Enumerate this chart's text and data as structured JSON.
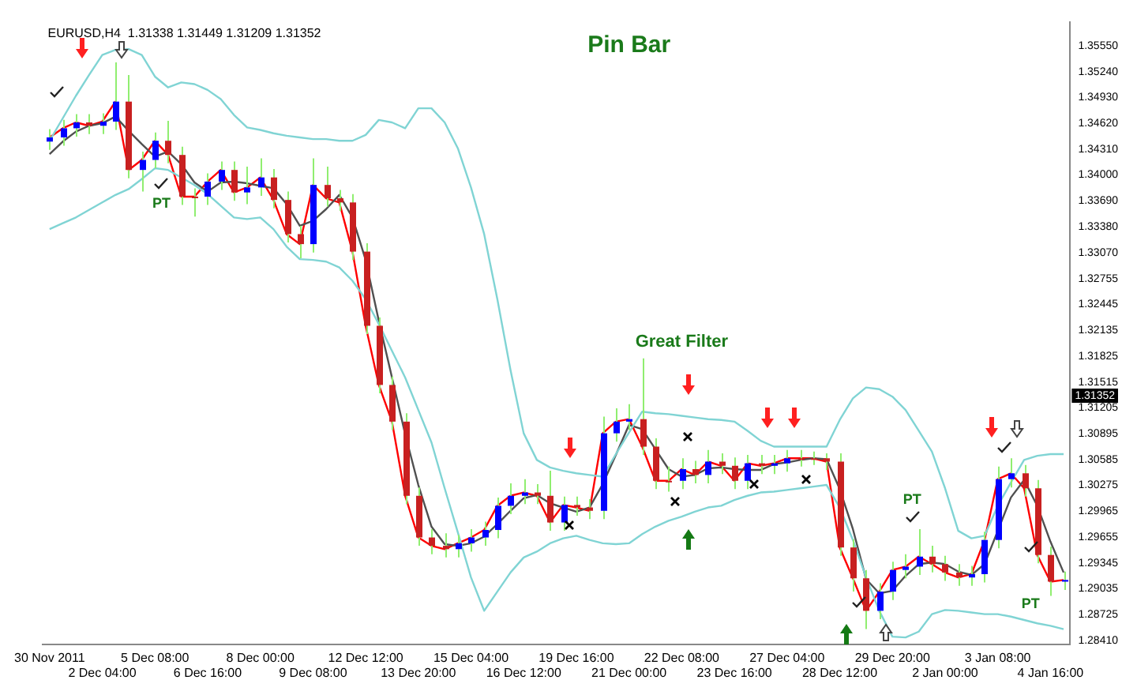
{
  "chart_data": {
    "type": "candlestick",
    "title": "EURUSD,H4  1.31338 1.31449 1.31209 1.31352",
    "categories": [
      "30 Nov 2011",
      null,
      null,
      null,
      "2 Dec 04:00",
      null,
      null,
      null,
      "5 Dec 08:00",
      null,
      null,
      null,
      "6 Dec 16:00",
      null,
      null,
      null,
      "8 Dec 00:00",
      null,
      null,
      null,
      "9 Dec 08:00",
      null,
      null,
      null,
      "12 Dec 12:00",
      null,
      null,
      null,
      "13 Dec 20:00",
      null,
      null,
      null,
      "15 Dec 04:00",
      null,
      null,
      null,
      "16 Dec 12:00",
      null,
      null,
      null,
      "19 Dec 16:00",
      null,
      null,
      null,
      "21 Dec 00:00",
      null,
      null,
      null,
      "22 Dec 08:00",
      null,
      null,
      null,
      "23 Dec 16:00",
      null,
      null,
      null,
      "27 Dec 04:00",
      null,
      null,
      null,
      "28 Dec 12:00",
      null,
      null,
      null,
      "29 Dec 20:00",
      null,
      null,
      null,
      "2 Jan 00:00",
      null,
      null,
      null,
      "3 Jan 08:00",
      null,
      null,
      null,
      "4 Jan 16:00",
      null
    ],
    "ohlc": [
      [
        1.344,
        1.3455,
        1.343,
        1.3445
      ],
      [
        1.3445,
        1.3466,
        1.3435,
        1.3456
      ],
      [
        1.3456,
        1.3473,
        1.3446,
        1.3463
      ],
      [
        1.3463,
        1.3473,
        1.3449,
        1.3459
      ],
      [
        1.3459,
        1.3474,
        1.3449,
        1.3464
      ],
      [
        1.3464,
        1.3535,
        1.3454,
        1.3488
      ],
      [
        1.3488,
        1.352,
        1.3396,
        1.3406
      ],
      [
        1.3406,
        1.3428,
        1.338,
        1.3418
      ],
      [
        1.3418,
        1.3451,
        1.3408,
        1.3441
      ],
      [
        1.3441,
        1.3465,
        1.3414,
        1.3424
      ],
      [
        1.3424,
        1.3434,
        1.3364,
        1.3374
      ],
      [
        1.3374,
        1.3384,
        1.335,
        1.3374
      ],
      [
        1.3374,
        1.3402,
        1.3364,
        1.3392
      ],
      [
        1.3392,
        1.3416,
        1.3382,
        1.3406
      ],
      [
        1.3406,
        1.3416,
        1.3369,
        1.3379
      ],
      [
        1.3379,
        1.341,
        1.3365,
        1.3385
      ],
      [
        1.3385,
        1.342,
        1.3375,
        1.3397
      ],
      [
        1.3397,
        1.3407,
        1.336,
        1.337
      ],
      [
        1.337,
        1.338,
        1.3319,
        1.3329
      ],
      [
        1.3329,
        1.3339,
        1.33,
        1.3317
      ],
      [
        1.3317,
        1.342,
        1.3307,
        1.3388
      ],
      [
        1.3388,
        1.341,
        1.3362,
        1.3372
      ],
      [
        1.3372,
        1.3382,
        1.3357,
        1.3367
      ],
      [
        1.3367,
        1.3377,
        1.3298,
        1.3308
      ],
      [
        1.3308,
        1.3318,
        1.3209,
        1.3219
      ],
      [
        1.3219,
        1.3229,
        1.3138,
        1.3148
      ],
      [
        1.3148,
        1.3158,
        1.3094,
        1.3104
      ],
      [
        1.3104,
        1.3114,
        1.3005,
        1.3015
      ],
      [
        1.3015,
        1.3025,
        1.2955,
        1.2965
      ],
      [
        1.2965,
        1.2975,
        1.2945,
        1.2955
      ],
      [
        1.2955,
        1.297,
        1.2941,
        1.2951
      ],
      [
        1.2951,
        1.2968,
        1.2941,
        1.2958
      ],
      [
        1.2958,
        1.2975,
        1.2948,
        1.2965
      ],
      [
        1.2965,
        1.2984,
        1.2955,
        1.2974
      ],
      [
        1.2974,
        1.3013,
        1.2964,
        1.3003
      ],
      [
        1.3003,
        1.303,
        1.2993,
        1.3015
      ],
      [
        1.3015,
        1.3035,
        1.3005,
        1.3019
      ],
      [
        1.3019,
        1.3029,
        1.3005,
        1.3015
      ],
      [
        1.3015,
        1.3045,
        1.2973,
        1.2983
      ],
      [
        1.2983,
        1.3014,
        1.2973,
        1.3004
      ],
      [
        1.3004,
        1.3014,
        1.2991,
        1.3001
      ],
      [
        1.3001,
        1.3011,
        1.2987,
        1.2997
      ],
      [
        1.2997,
        1.311,
        1.2987,
        1.309
      ],
      [
        1.309,
        1.312,
        1.308,
        1.3104
      ],
      [
        1.3104,
        1.3125,
        1.3094,
        1.3107
      ],
      [
        1.3107,
        1.318,
        1.3064,
        1.3074
      ],
      [
        1.3074,
        1.3084,
        1.3023,
        1.3033
      ],
      [
        1.3033,
        1.305,
        1.302,
        1.3033
      ],
      [
        1.3033,
        1.306,
        1.3023,
        1.3047
      ],
      [
        1.3047,
        1.3057,
        1.303,
        1.304
      ],
      [
        1.304,
        1.307,
        1.303,
        1.3056
      ],
      [
        1.3056,
        1.3066,
        1.3041,
        1.3051
      ],
      [
        1.3051,
        1.3061,
        1.3023,
        1.3033
      ],
      [
        1.3033,
        1.3064,
        1.3023,
        1.3054
      ],
      [
        1.3054,
        1.3064,
        1.3041,
        1.3051
      ],
      [
        1.3051,
        1.3064,
        1.3041,
        1.3054
      ],
      [
        1.3054,
        1.307,
        1.3044,
        1.306
      ],
      [
        1.306,
        1.307,
        1.305,
        1.306
      ],
      [
        1.306,
        1.3068,
        1.3052,
        1.306
      ],
      [
        1.306,
        1.3066,
        1.3046,
        1.3056
      ],
      [
        1.3056,
        1.3066,
        1.2943,
        1.2953
      ],
      [
        1.2953,
        1.2963,
        1.29,
        1.2916
      ],
      [
        1.2916,
        1.2926,
        1.2855,
        1.2877
      ],
      [
        1.2877,
        1.291,
        1.2867,
        1.29
      ],
      [
        1.29,
        1.2936,
        1.289,
        1.2926
      ],
      [
        1.2926,
        1.2945,
        1.2916,
        1.293
      ],
      [
        1.293,
        1.2975,
        1.292,
        1.2942
      ],
      [
        1.2942,
        1.2955,
        1.2923,
        1.2933
      ],
      [
        1.2933,
        1.2943,
        1.2913,
        1.2923
      ],
      [
        1.2923,
        1.2933,
        1.2907,
        1.2917
      ],
      [
        1.2917,
        1.2931,
        1.2907,
        1.2921
      ],
      [
        1.2921,
        1.2972,
        1.2911,
        1.2962
      ],
      [
        1.2962,
        1.305,
        1.2952,
        1.3035
      ],
      [
        1.3035,
        1.306,
        1.3025,
        1.3042
      ],
      [
        1.3042,
        1.3052,
        1.3014,
        1.3024
      ],
      [
        1.3024,
        1.3034,
        1.2934,
        1.2944
      ],
      [
        1.2944,
        1.2954,
        1.2895,
        1.2912
      ],
      [
        1.2912,
        1.2924,
        1.2902,
        1.2914
      ]
    ],
    "color": "#90ee70",
    "colors": [
      "#0000ff",
      "#0000ff",
      "#0000ff",
      "#c82020",
      "#0000ff",
      "#0000ff",
      "#c82020",
      "#0000ff",
      "#0000ff",
      "#c82020",
      "#c82020",
      "#c82020",
      "#0000ff",
      "#0000ff",
      "#c82020",
      "#0000ff",
      "#0000ff",
      "#c82020",
      "#c82020",
      "#c82020",
      "#0000ff",
      "#c82020",
      "#c82020",
      "#c82020",
      "#c82020",
      "#c82020",
      "#c82020",
      "#c82020",
      "#c82020",
      "#c82020",
      "#c82020",
      "#0000ff",
      "#0000ff",
      "#0000ff",
      "#0000ff",
      "#0000ff",
      "#0000ff",
      "#c82020",
      "#c82020",
      "#0000ff",
      "#c82020",
      "#c82020",
      "#0000ff",
      "#0000ff",
      "#0000ff",
      "#c82020",
      "#c82020",
      "#c82020",
      "#0000ff",
      "#c82020",
      "#0000ff",
      "#c82020",
      "#c82020",
      "#0000ff",
      "#c82020",
      "#0000ff",
      "#0000ff",
      "#c82020",
      "#c82020",
      "#c82020",
      "#c82020",
      "#c82020",
      "#c82020",
      "#0000ff",
      "#0000ff",
      "#0000ff",
      "#0000ff",
      "#c82020",
      "#c82020",
      "#c82020",
      "#0000ff",
      "#0000ff",
      "#0000ff",
      "#0000ff",
      "#c82020",
      "#c82020",
      "#c82020",
      "#0000ff"
    ],
    "series": [
      {
        "type": "line",
        "color": "#80d4d4",
        "values": [
          1.3441,
          1.3468,
          1.3495,
          1.352,
          1.3544,
          1.355,
          1.3551,
          1.3544,
          1.3518,
          1.3505,
          1.3511,
          1.3509,
          1.3502,
          1.3491,
          1.3472,
          1.3457,
          1.3454,
          1.345,
          1.3447,
          1.3445,
          1.3443,
          1.3443,
          1.3441,
          1.3441,
          1.3448,
          1.3466,
          1.3463,
          1.3456,
          1.348,
          1.348,
          1.3463,
          1.3432,
          1.3385,
          1.3329,
          1.3251,
          1.3166,
          1.309,
          1.3058,
          1.3049,
          1.3045,
          1.3042,
          1.304,
          1.3038,
          1.3065,
          1.3091,
          1.3116,
          1.3114,
          1.3113,
          1.3111,
          1.3109,
          1.3107,
          1.3106,
          1.3104,
          1.3093,
          1.3081,
          1.3074,
          1.3074,
          1.3074,
          1.3074,
          1.3074,
          1.3106,
          1.3132,
          1.3145,
          1.3143,
          1.3134,
          1.3118,
          1.3093,
          1.3068,
          1.3024,
          1.2973,
          1.2964,
          1.2967,
          1.3003,
          1.3031,
          1.3058,
          1.3063,
          1.3065,
          1.3065
        ]
      },
      {
        "type": "line",
        "color": "#80d4d4",
        "values": [
          1.3335,
          1.3342,
          1.3349,
          1.3358,
          1.3367,
          1.3376,
          1.3383,
          1.3395,
          1.3408,
          1.3406,
          1.3397,
          1.3388,
          1.3377,
          1.3363,
          1.3349,
          1.3347,
          1.3349,
          1.3335,
          1.3314,
          1.3299,
          1.3298,
          1.3296,
          1.3289,
          1.3273,
          1.3251,
          1.3221,
          1.3189,
          1.3157,
          1.3118,
          1.3079,
          1.3024,
          1.2971,
          1.2917,
          1.2877,
          1.29,
          1.2923,
          1.2941,
          1.2948,
          1.2958,
          1.2964,
          1.2967,
          1.2962,
          1.2958,
          1.2957,
          1.2958,
          1.2969,
          1.2978,
          1.2985,
          1.299,
          1.2996,
          1.3001,
          1.3003,
          1.301,
          1.3015,
          1.3019,
          1.302,
          1.3022,
          1.3024,
          1.3026,
          1.3028,
          1.3001,
          1.2962,
          1.2917,
          1.2877,
          1.2846,
          1.2845,
          1.2852,
          1.2873,
          1.2878,
          1.2877,
          1.2875,
          1.2873,
          1.2873,
          1.287,
          1.2866,
          1.2862,
          1.2859,
          1.2855
        ]
      },
      {
        "type": "line",
        "color": "#505050",
        "values": [
          1.3425,
          1.344,
          1.3452,
          1.3459,
          1.3462,
          1.347,
          1.3453,
          1.3437,
          1.3422,
          1.3428,
          1.3413,
          1.3391,
          1.338,
          1.3391,
          1.3392,
          1.339,
          1.3387,
          1.3384,
          1.3365,
          1.3339,
          1.3345,
          1.3359,
          1.3376,
          1.3349,
          1.3298,
          1.3225,
          1.3157,
          1.3089,
          1.3028,
          1.2978,
          1.2957,
          1.2955,
          1.2958,
          1.2966,
          1.2981,
          1.2997,
          1.3012,
          1.3016,
          1.3006,
          1.3001,
          1.2996,
          1.3001,
          1.3029,
          1.3064,
          1.31,
          1.3095,
          1.3071,
          1.3047,
          1.3038,
          1.304,
          1.3048,
          1.3049,
          1.3047,
          1.3046,
          1.3046,
          1.3053,
          1.3055,
          1.3058,
          1.306,
          1.3059,
          1.3023,
          1.2975,
          1.2915,
          1.2898,
          1.2901,
          1.2919,
          1.2933,
          1.2935,
          1.2933,
          1.2924,
          1.292,
          1.2933,
          1.2973,
          1.3013,
          1.3034,
          1.3003,
          1.296,
          1.2923
        ]
      },
      {
        "type": "line",
        "color": "#ff0000",
        "values": [
          1.3445,
          1.3456,
          1.3463,
          1.3459,
          1.3464,
          1.3488,
          1.3406,
          1.3418,
          1.3441,
          1.3424,
          1.3374,
          1.3374,
          1.3392,
          1.3406,
          1.3379,
          1.3385,
          1.3397,
          1.337,
          1.3329,
          1.3317,
          1.3388,
          1.3372,
          1.3367,
          1.3308,
          1.3219,
          1.3148,
          1.3104,
          1.3015,
          1.2965,
          1.2955,
          1.2951,
          1.2958,
          1.2965,
          1.2974,
          1.3003,
          1.3015,
          1.3019,
          1.3015,
          1.2983,
          1.3004,
          1.3001,
          1.2997,
          1.309,
          1.3104,
          1.3107,
          1.3074,
          1.3033,
          1.3033,
          1.3047,
          1.304,
          1.3056,
          1.3051,
          1.3033,
          1.3054,
          1.3051,
          1.3054,
          1.306,
          1.306,
          1.306,
          1.3056,
          1.2953,
          1.2916,
          1.2877,
          1.29,
          1.2926,
          1.293,
          1.2942,
          1.2933,
          1.2923,
          1.2917,
          1.2921,
          1.2962,
          1.3035,
          1.3042,
          1.3024,
          1.2944,
          1.2912,
          1.2914
        ]
      }
    ],
    "ylim": [
      1.2837,
      1.3583
    ],
    "yticks": [
      {
        "value": 1.3555,
        "label": "1.35550"
      },
      {
        "value": 1.3524,
        "label": "1.35240"
      },
      {
        "value": 1.3493,
        "label": "1.34930"
      },
      {
        "value": 1.3462,
        "label": "1.34620"
      },
      {
        "value": 1.3431,
        "label": "1.34310"
      },
      {
        "value": 1.34,
        "label": "1.34000"
      },
      {
        "value": 1.3369,
        "label": "1.33690"
      },
      {
        "value": 1.3338,
        "label": "1.33380"
      },
      {
        "value": 1.3307,
        "label": "1.33070"
      },
      1.32755,
      1.32445,
      1.32135,
      1.31825,
      1.31515,
      {
        "value": 1.31205,
        "label": "1.31205"
      },
      1.30895,
      1.30585,
      1.30275,
      1.29965,
      1.29655,
      1.29345,
      1.29035,
      1.28725,
      {
        "value": 1.2841,
        "label": "1.28410"
      }
    ],
    "annotations": [
      "Pin Bar",
      "Great Filter",
      "PT",
      "PT",
      "PT",
      {
        "text": "1.31352",
        "y": 1.31352
      }
    ]
  }
}
